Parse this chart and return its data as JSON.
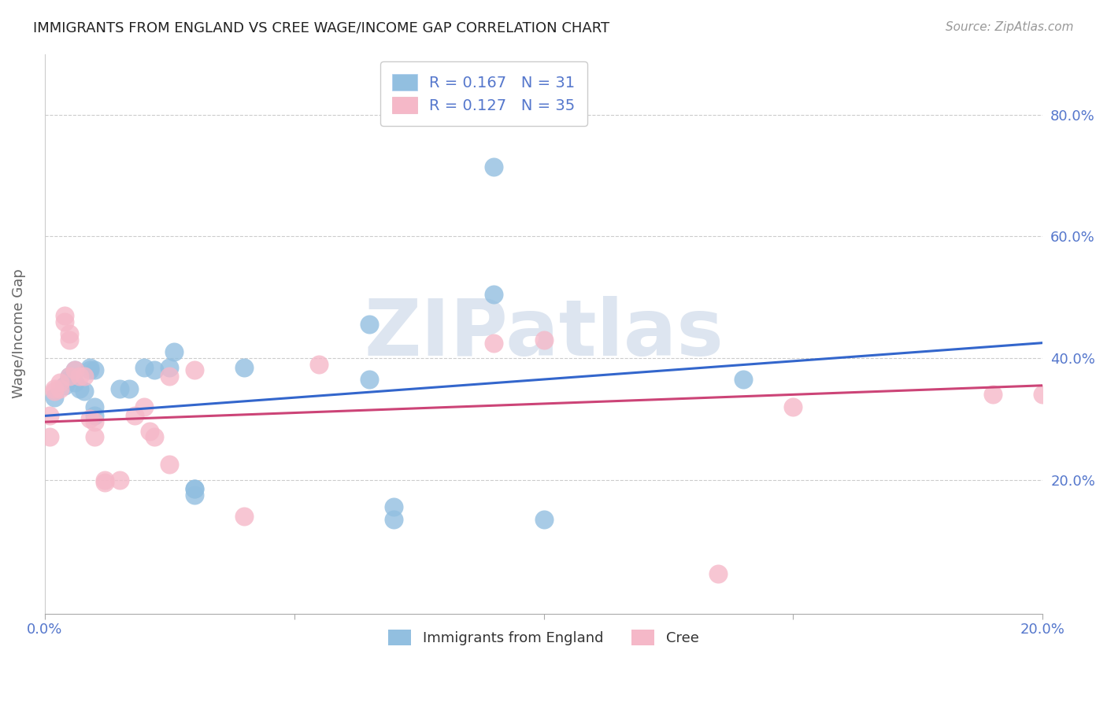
{
  "title": "IMMIGRANTS FROM ENGLAND VS CREE WAGE/INCOME GAP CORRELATION CHART",
  "source": "Source: ZipAtlas.com",
  "ylabel": "Wage/Income Gap",
  "xlim": [
    0.0,
    0.2
  ],
  "ylim": [
    -0.02,
    0.9
  ],
  "yticks": [
    0.2,
    0.4,
    0.6,
    0.8
  ],
  "xticks": [
    0.0,
    0.05,
    0.1,
    0.15,
    0.2
  ],
  "xtick_labels": [
    "0.0%",
    "",
    "",
    "",
    "20.0%"
  ],
  "england_scatter": [
    [
      0.002,
      0.335
    ],
    [
      0.004,
      0.355
    ],
    [
      0.005,
      0.365
    ],
    [
      0.005,
      0.37
    ],
    [
      0.006,
      0.36
    ],
    [
      0.006,
      0.38
    ],
    [
      0.007,
      0.35
    ],
    [
      0.008,
      0.345
    ],
    [
      0.009,
      0.38
    ],
    [
      0.009,
      0.385
    ],
    [
      0.01,
      0.32
    ],
    [
      0.01,
      0.305
    ],
    [
      0.01,
      0.38
    ],
    [
      0.015,
      0.35
    ],
    [
      0.017,
      0.35
    ],
    [
      0.02,
      0.385
    ],
    [
      0.022,
      0.38
    ],
    [
      0.025,
      0.385
    ],
    [
      0.026,
      0.41
    ],
    [
      0.03,
      0.185
    ],
    [
      0.03,
      0.175
    ],
    [
      0.03,
      0.185
    ],
    [
      0.04,
      0.385
    ],
    [
      0.065,
      0.455
    ],
    [
      0.065,
      0.365
    ],
    [
      0.07,
      0.155
    ],
    [
      0.07,
      0.135
    ],
    [
      0.09,
      0.505
    ],
    [
      0.09,
      0.715
    ],
    [
      0.1,
      0.135
    ],
    [
      0.14,
      0.365
    ]
  ],
  "cree_scatter": [
    [
      0.001,
      0.27
    ],
    [
      0.001,
      0.305
    ],
    [
      0.002,
      0.345
    ],
    [
      0.002,
      0.35
    ],
    [
      0.003,
      0.35
    ],
    [
      0.003,
      0.36
    ],
    [
      0.004,
      0.47
    ],
    [
      0.004,
      0.46
    ],
    [
      0.005,
      0.43
    ],
    [
      0.005,
      0.44
    ],
    [
      0.005,
      0.37
    ],
    [
      0.006,
      0.38
    ],
    [
      0.007,
      0.37
    ],
    [
      0.008,
      0.37
    ],
    [
      0.009,
      0.3
    ],
    [
      0.01,
      0.295
    ],
    [
      0.01,
      0.27
    ],
    [
      0.012,
      0.2
    ],
    [
      0.012,
      0.195
    ],
    [
      0.015,
      0.2
    ],
    [
      0.018,
      0.305
    ],
    [
      0.02,
      0.32
    ],
    [
      0.021,
      0.28
    ],
    [
      0.022,
      0.27
    ],
    [
      0.025,
      0.225
    ],
    [
      0.025,
      0.37
    ],
    [
      0.03,
      0.38
    ],
    [
      0.04,
      0.14
    ],
    [
      0.055,
      0.39
    ],
    [
      0.09,
      0.425
    ],
    [
      0.1,
      0.43
    ],
    [
      0.135,
      0.045
    ],
    [
      0.15,
      0.32
    ],
    [
      0.19,
      0.34
    ],
    [
      0.2,
      0.34
    ]
  ],
  "england_line_x": [
    0.0,
    0.2
  ],
  "england_line_y": [
    0.305,
    0.425
  ],
  "cree_line_x": [
    0.0,
    0.2
  ],
  "cree_line_y": [
    0.295,
    0.355
  ],
  "england_color": "#92bfe0",
  "cree_color": "#f5b8c8",
  "england_line_color": "#3366cc",
  "cree_line_color": "#cc4477",
  "background_color": "#ffffff",
  "grid_color": "#cccccc",
  "watermark": "ZIPatlas",
  "watermark_color": "#dde5f0",
  "tick_color": "#5577cc",
  "r_england": "0.167",
  "n_england": "31",
  "r_cree": "0.127",
  "n_cree": "35"
}
